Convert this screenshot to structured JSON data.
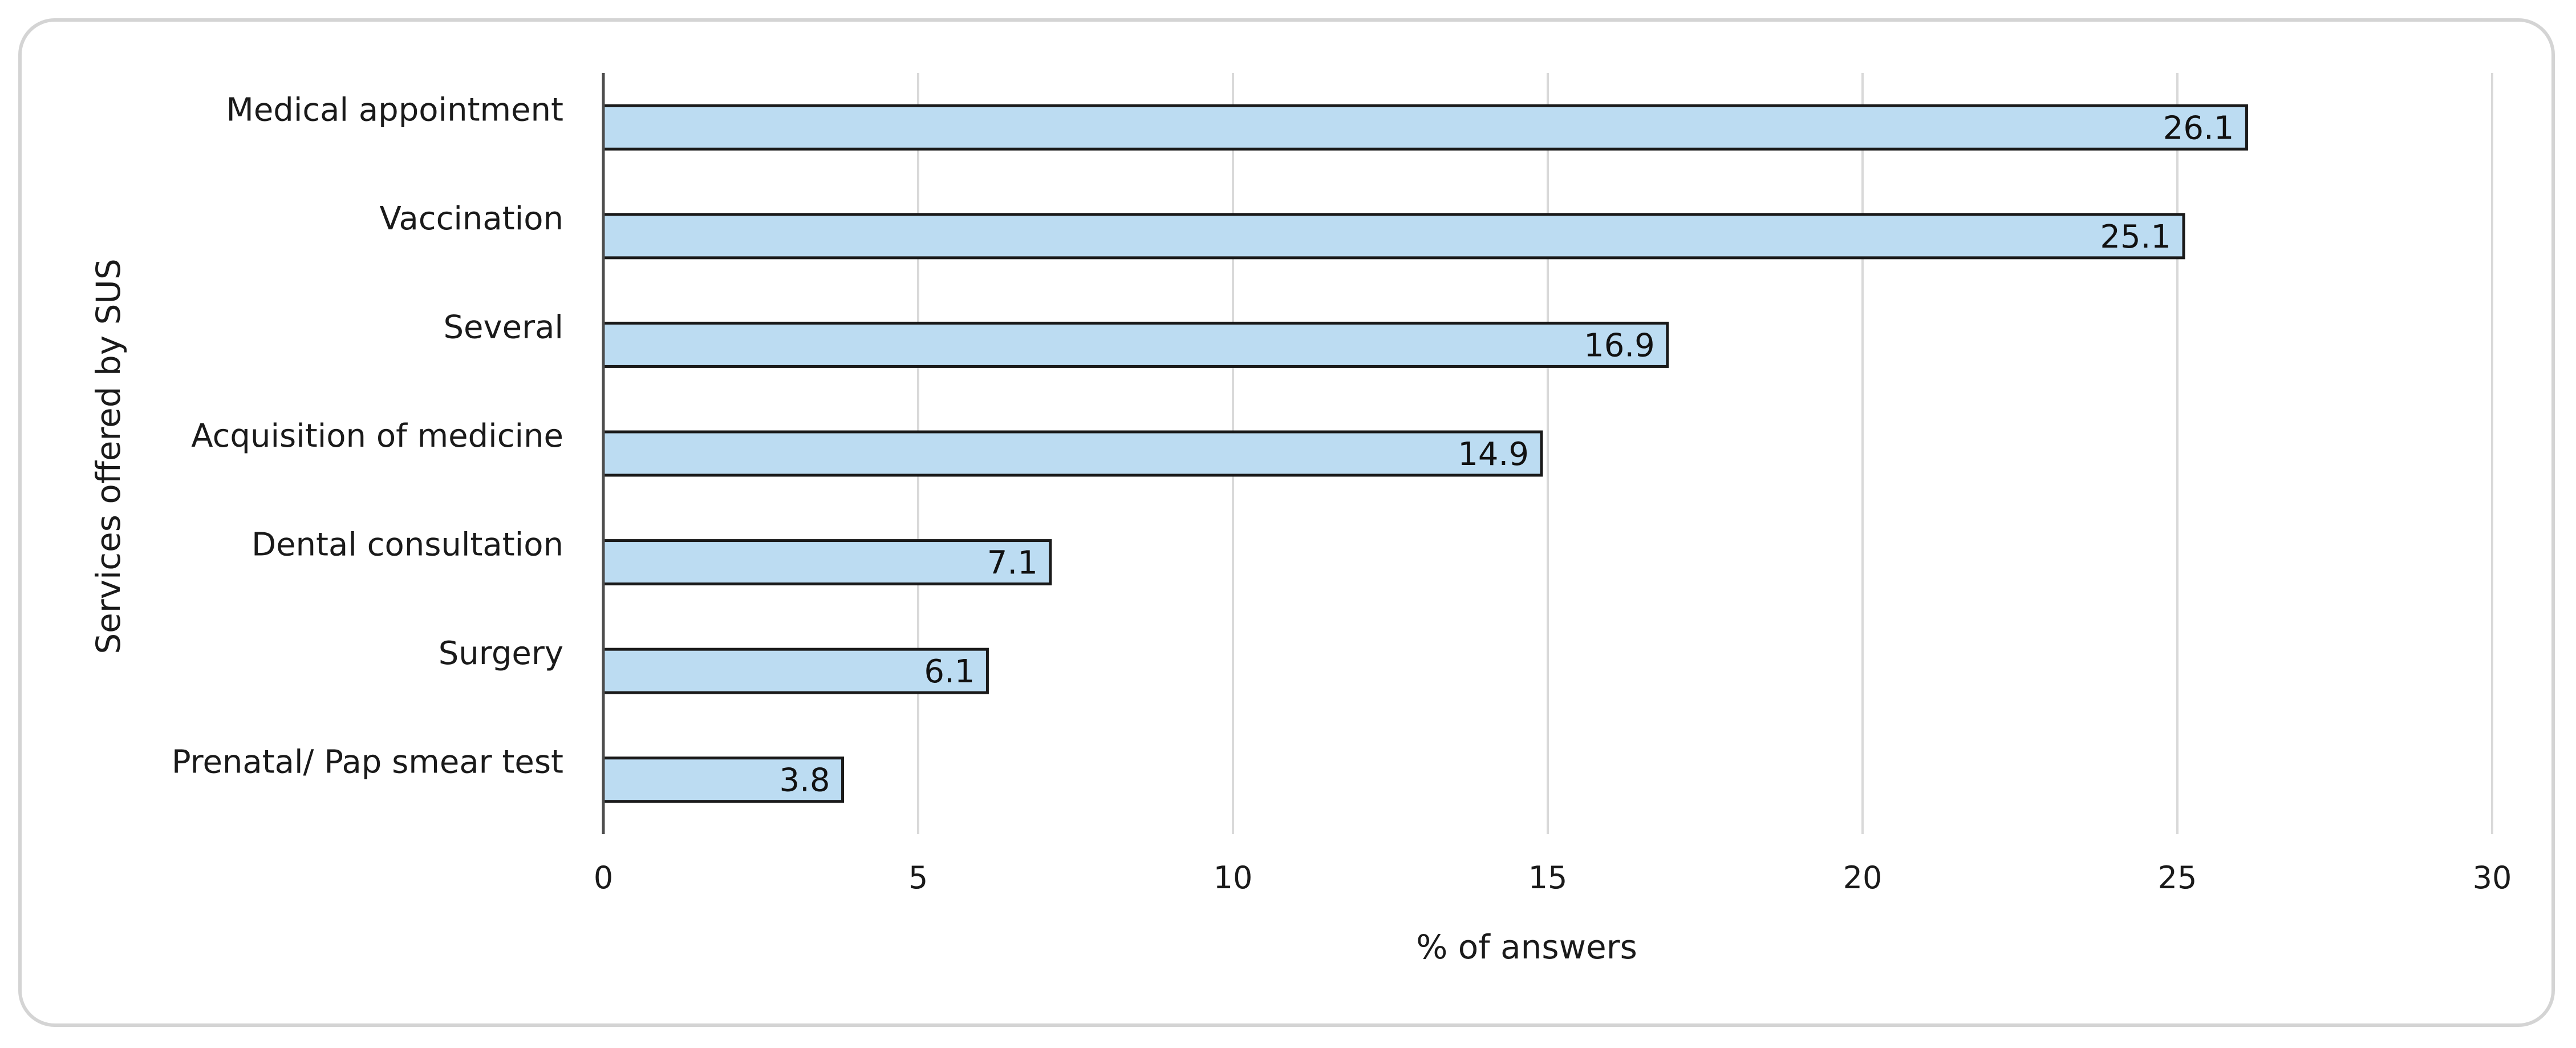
{
  "chart_data": {
    "type": "bar",
    "orientation": "horizontal",
    "categories": [
      "Medical appointment",
      "Vaccination",
      "Several",
      "Acquisition of medicine",
      "Dental consultation",
      "Surgery",
      "Prenatal/  Pap smear test"
    ],
    "values": [
      26.1,
      25.1,
      16.9,
      14.9,
      7.1,
      6.1,
      3.8
    ],
    "data_labels": [
      "26.1",
      "25.1",
      "16.9",
      "14.9",
      "7.1",
      "6.1",
      "3.8"
    ],
    "xlabel": "% of answers",
    "ylabel": "Services offered by SUS",
    "xlim": [
      0,
      30
    ],
    "xticks": [
      0,
      5,
      10,
      15,
      20,
      25,
      30
    ],
    "xtick_labels": [
      "0",
      "5",
      "10",
      "15",
      "20",
      "25",
      "30"
    ],
    "grid": "vertical",
    "legend": "none",
    "colors": {
      "bar_fill": "#bcdcf2",
      "bar_stroke": "#1a1a1a",
      "grid": "#d9d9d9",
      "axis": "#4d4d4d"
    }
  }
}
